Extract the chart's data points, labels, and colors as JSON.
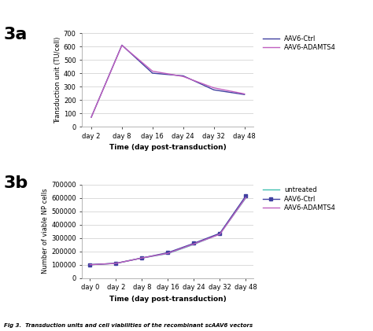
{
  "panel_a": {
    "label": "3a",
    "x_labels": [
      "day 2",
      "day 8",
      "day 16",
      "day 24",
      "day 32",
      "day 48"
    ],
    "series": [
      {
        "name": "AAV6-Ctrl",
        "color": "#4040a0",
        "values": [
          70,
          610,
          400,
          380,
          275,
          240
        ]
      },
      {
        "name": "AAV6-ADAMTS4",
        "color": "#c060c0",
        "values": [
          70,
          608,
          415,
          375,
          290,
          245
        ]
      }
    ],
    "ylabel": "Transduction unit (TU/cell)",
    "xlabel": "Time (day post-transduction)",
    "ylim": [
      0,
      700
    ],
    "yticks": [
      0,
      100,
      200,
      300,
      400,
      500,
      600,
      700
    ]
  },
  "panel_b": {
    "label": "3b",
    "x_labels": [
      "day 0",
      "day 2",
      "day 8",
      "day 16",
      "day 24",
      "day 32",
      "day 48"
    ],
    "series": [
      {
        "name": "untreated",
        "color": "#40c0b0",
        "values": [
          100000,
          110000,
          150000,
          183000,
          252000,
          330000,
          600000
        ]
      },
      {
        "name": "AAV6-Ctrl",
        "color": "#4040a0",
        "values": [
          100000,
          110000,
          150000,
          190000,
          260000,
          335000,
          615000
        ]
      },
      {
        "name": "AAV6-ADAMTS4",
        "color": "#c060c0",
        "values": [
          100000,
          110000,
          150000,
          185000,
          255000,
          328000,
          603000
        ]
      }
    ],
    "ylabel": "Number of viable NP cells",
    "xlabel": "Time (day post-transduction)",
    "ylim": [
      0,
      700000
    ],
    "yticks": [
      0,
      100000,
      200000,
      300000,
      400000,
      500000,
      600000,
      700000
    ]
  },
  "background_color": "#ffffff",
  "caption": "Fig 3.  Transduction units and cell viabilities of the recombinant scAAV6 vectors"
}
